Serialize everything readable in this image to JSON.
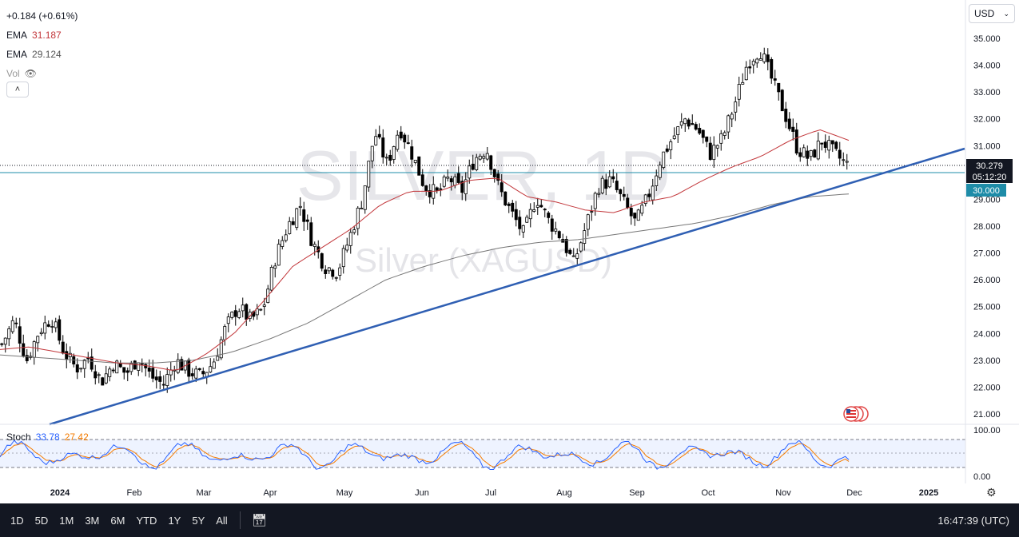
{
  "legend": {
    "change": "+0.184 (+0.61%)",
    "ema1_label": "EMA",
    "ema1_value": "31.187",
    "ema2_label": "EMA",
    "ema2_value": "29.124",
    "vol_label": "Vol"
  },
  "currency": {
    "label": "USD"
  },
  "watermark": {
    "line1": "SILVER, 1D",
    "line2": "Silver (XAGUSD)"
  },
  "price_badge": {
    "price": "30.279",
    "countdown": "05:12:20",
    "level": "30.000"
  },
  "stoch": {
    "label": "Stoch",
    "k_value": "33.78",
    "d_value": "27.42",
    "ticks": [
      "100.00",
      "0.00"
    ]
  },
  "bottombar": {
    "ranges": [
      "1D",
      "5D",
      "1M",
      "3M",
      "6M",
      "YTD",
      "1Y",
      "5Y",
      "All"
    ],
    "time": "16:47:39 (UTC)"
  },
  "colors": {
    "up": "#ffffff",
    "down": "#000000",
    "ema_fast": "#c2363a",
    "ema_slow": "#777777",
    "trendline": "#2f5fb3",
    "stoch_k": "#2962ff",
    "stoch_d": "#f57c00",
    "level_line": "#1e8ca8"
  },
  "chart_data": {
    "type": "candlestick",
    "yaxis_ticks": [
      "35.000",
      "34.000",
      "33.000",
      "32.000",
      "31.000",
      "30.000",
      "29.000",
      "28.000",
      "27.000",
      "26.000",
      "25.000",
      "24.000",
      "23.000",
      "22.000",
      "21.000"
    ],
    "ylim": [
      20.6,
      35.5
    ],
    "xaxis_ticks": [
      "2024",
      "Feb",
      "Mar",
      "Apr",
      "May",
      "Jun",
      "Jul",
      "Aug",
      "Sep",
      "Oct",
      "Nov",
      "Dec",
      "2025"
    ],
    "close_path": [
      23.6,
      24.5,
      23.0,
      24.1,
      24.6,
      23.3,
      22.7,
      23.1,
      22.2,
      22.9,
      22.5,
      23.1,
      22.4,
      22.1,
      23.0,
      22.6,
      22.4,
      22.9,
      24.2,
      25.0,
      24.5,
      24.9,
      26.8,
      28.0,
      28.8,
      27.4,
      26.5,
      26.3,
      27.6,
      29.0,
      31.5,
      30.3,
      31.7,
      30.7,
      29.5,
      29.2,
      29.8,
      29.3,
      30.5,
      30.9,
      29.4,
      28.5,
      27.7,
      29.1,
      28.2,
      27.6,
      26.6,
      28.0,
      29.5,
      29.7,
      28.9,
      28.1,
      29.1,
      30.5,
      31.3,
      32.0,
      31.6,
      30.7,
      31.3,
      32.6,
      34.1,
      34.6,
      33.4,
      32.2,
      30.9,
      30.5,
      31.2,
      30.7,
      30.279
    ],
    "ema_fast_path": [
      23.4,
      23.5,
      23.3,
      23.1,
      22.9,
      22.8,
      22.6,
      23.2,
      24.0,
      25.2,
      26.5,
      27.2,
      27.9,
      28.8,
      29.3,
      29.3,
      29.7,
      29.8,
      29.1,
      28.9,
      28.6,
      28.5,
      28.9,
      29.1,
      29.7,
      30.2,
      30.6,
      31.2,
      31.6,
      31.2
    ],
    "ema_slow_path": [
      23.2,
      23.1,
      23.0,
      22.9,
      22.9,
      23.0,
      23.3,
      23.8,
      24.4,
      25.2,
      26.0,
      26.5,
      26.9,
      27.2,
      27.4,
      27.5,
      27.7,
      27.9,
      28.1,
      28.4,
      28.8,
      29.1,
      29.2
    ],
    "trendline": [
      [
        0,
        20.6
      ],
      [
        1,
        30.9
      ]
    ],
    "horizontal_level": 30.0,
    "last_price": 30.279,
    "stoch_k": 33.78,
    "stoch_d": 27.42
  }
}
